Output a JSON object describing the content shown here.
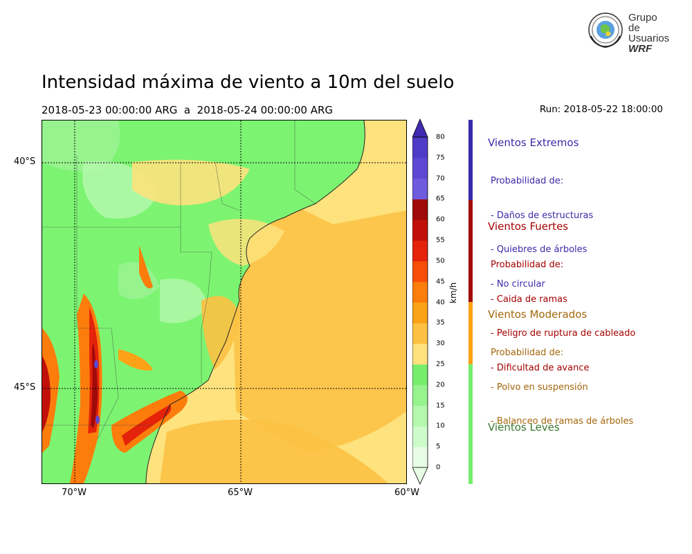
{
  "header": {
    "title": "Intensidad máxima de viento a 10m del suelo",
    "period": "2018-05-23 00:00:00 ARG  a  2018-05-24 00:00:00 ARG",
    "run": "Run: 2018-05-22 18:00:00"
  },
  "logo": {
    "line1": "Grupo de",
    "line2": "Usuarios",
    "line3": "WRF"
  },
  "map": {
    "lat_labels": [
      "40°S",
      "45°S"
    ],
    "lon_labels": [
      "70°W",
      "65°W",
      "60°W"
    ],
    "land_base_color": "#7cf472",
    "ocean_base_color": "#fde27d"
  },
  "colorbar": {
    "unit": "km/h",
    "ticks": [
      "0",
      "5",
      "10",
      "15",
      "20",
      "25",
      "30",
      "35",
      "40",
      "45",
      "50",
      "55",
      "60",
      "65",
      "70",
      "75",
      "80"
    ],
    "colors": [
      "#e8fde6",
      "#cdfbc9",
      "#b4f8ad",
      "#96f38e",
      "#76ee6c",
      "#fde27d",
      "#fcc143",
      "#fca216",
      "#fc7d0c",
      "#f84d07",
      "#e4230a",
      "#c1100a",
      "#a00a0a",
      "#6e5cdd",
      "#5e48d3",
      "#4f3cc6",
      "#3f2ab0"
    ]
  },
  "categories": [
    {
      "title": "Vientos Extremos",
      "color": "#3a2aa8",
      "lines": [
        "Probabilidad de:",
        "- Daños de estructuras",
        "- Quiebres de árboles",
        "- No circular"
      ]
    },
    {
      "title": "Vientos Fuertes",
      "color": "#a50000",
      "lines": [
        "Probabilidad de:",
        "- Caida de ramas",
        "- Peligro de ruptura de cableado",
        "- Dificultad de avance"
      ]
    },
    {
      "title": "Vientos Moderados",
      "color": "#a4660a",
      "bar_color": "#fca216",
      "lines": [
        "Probabilidad de:",
        "- Polvo en suspensión",
        "- Balanceo de ramas de árboles"
      ]
    },
    {
      "title": "Vientos Leves",
      "color": "#3a7a2f",
      "bar_color": "#76ee6c",
      "lines": []
    }
  ]
}
